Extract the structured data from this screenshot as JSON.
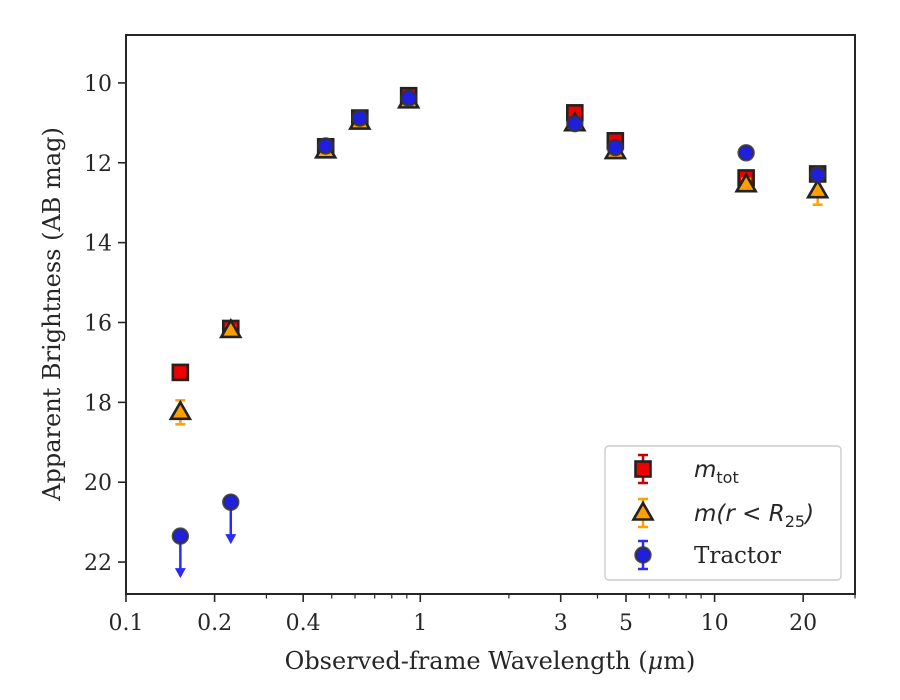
{
  "chart_data": {
    "type": "scatter",
    "xlabel": "Observed-frame Wavelength (μm)",
    "xlabel_parts": [
      "Observed-frame Wavelength (",
      "μ",
      "m)"
    ],
    "ylabel": "Apparent Brightness (AB mag)",
    "x_scale": "log",
    "xlim": [
      0.1,
      30
    ],
    "ylim": [
      22.8,
      8.8
    ],
    "y_inverted": true,
    "x_major_ticks": [
      0.1,
      0.2,
      0.4,
      1,
      3,
      5,
      10,
      20
    ],
    "x_tick_labels": [
      "0.1",
      "0.2",
      "0.4",
      "1",
      "3",
      "5",
      "10",
      "20"
    ],
    "y_ticks": [
      10,
      12,
      14,
      16,
      18,
      20,
      22
    ],
    "y_tick_labels": [
      "10",
      "12",
      "14",
      "16",
      "18",
      "20",
      "22"
    ],
    "grid": false,
    "legend_position": "bottom-right",
    "series": [
      {
        "name": "m_tot",
        "legend_label": {
          "base": "m",
          "sub": "tot"
        },
        "marker": "square",
        "color": "#ee0000",
        "edge_color": "#222222",
        "errbar_color": "#cc0000",
        "points": [
          {
            "x": 0.153,
            "y": 17.25,
            "yerr": 0.1
          },
          {
            "x": 0.227,
            "y": 16.15,
            "yerr": 0.08
          },
          {
            "x": 0.477,
            "y": 11.6,
            "yerr": 0.05
          },
          {
            "x": 0.623,
            "y": 10.88,
            "yerr": 0.05
          },
          {
            "x": 0.913,
            "y": 10.32,
            "yerr": 0.05
          },
          {
            "x": 3.35,
            "y": 10.75,
            "yerr": 0.08
          },
          {
            "x": 4.6,
            "y": 11.45,
            "yerr": 0.1
          },
          {
            "x": 12.8,
            "y": 12.38,
            "yerr": 0.12
          },
          {
            "x": 22.4,
            "y": 12.28,
            "yerr": 0.12
          }
        ]
      },
      {
        "name": "m(r<R25)",
        "legend_label": {
          "base": "m(r < R",
          "sub": "25",
          "tail": ")"
        },
        "marker": "triangle",
        "color": "#ffa000",
        "edge_color": "#222222",
        "errbar_color": "#ffa000",
        "points": [
          {
            "x": 0.153,
            "y": 18.25,
            "yerr": 0.3
          },
          {
            "x": 0.227,
            "y": 16.2,
            "yerr": 0.1
          },
          {
            "x": 0.477,
            "y": 11.7,
            "yerr": 0.05
          },
          {
            "x": 0.623,
            "y": 10.98,
            "yerr": 0.05
          },
          {
            "x": 0.913,
            "y": 10.45,
            "yerr": 0.05
          },
          {
            "x": 3.35,
            "y": 11.02,
            "yerr": 0.1
          },
          {
            "x": 4.6,
            "y": 11.72,
            "yerr": 0.1
          },
          {
            "x": 12.8,
            "y": 12.55,
            "yerr": 0.15
          },
          {
            "x": 22.4,
            "y": 12.7,
            "yerr": 0.35
          }
        ]
      },
      {
        "name": "Tractor",
        "legend_label": {
          "base": "Tractor"
        },
        "marker": "circle",
        "color": "#1f1fdd",
        "edge_color": "#333333",
        "errbar_color": "#2a2aff",
        "points": [
          {
            "x": 0.153,
            "y": 21.35,
            "yerr": 0,
            "upper_limit": true
          },
          {
            "x": 0.227,
            "y": 20.5,
            "yerr": 0,
            "upper_limit": true
          },
          {
            "x": 0.477,
            "y": 11.58,
            "yerr": 0.05
          },
          {
            "x": 0.623,
            "y": 10.88,
            "yerr": 0.05
          },
          {
            "x": 0.913,
            "y": 10.38,
            "yerr": 0.05
          },
          {
            "x": 3.35,
            "y": 11.02,
            "yerr": 0.05
          },
          {
            "x": 4.6,
            "y": 11.62,
            "yerr": 0.05
          },
          {
            "x": 12.8,
            "y": 11.75,
            "yerr": 0.05
          },
          {
            "x": 22.4,
            "y": 12.3,
            "yerr": 0.05
          }
        ]
      }
    ]
  }
}
